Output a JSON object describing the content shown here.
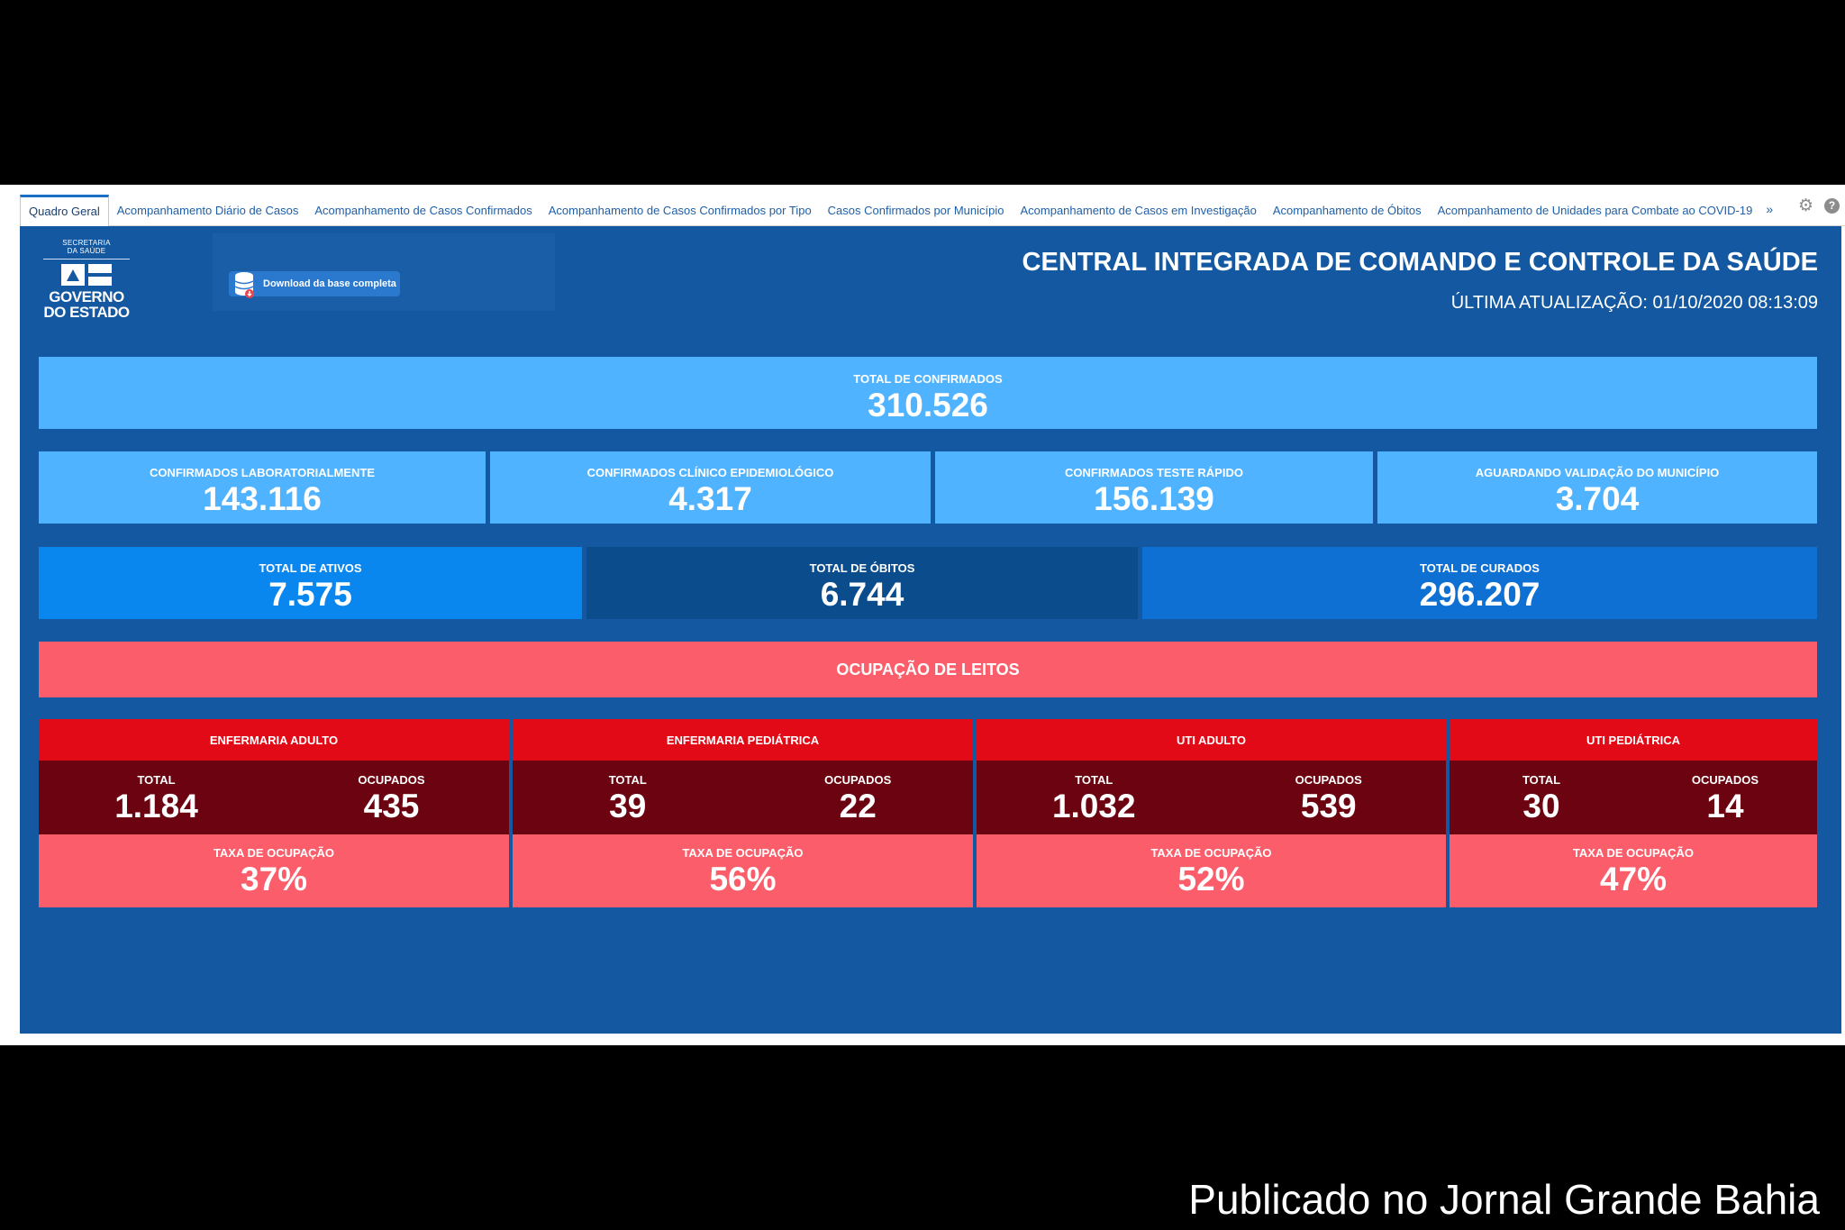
{
  "tabs": [
    {
      "label": "Quadro Geral",
      "active": true
    },
    {
      "label": "Acompanhamento Diário de Casos"
    },
    {
      "label": "Acompanhamento de Casos Confirmados"
    },
    {
      "label": "Acompanhamento de Casos Confirmados por Tipo"
    },
    {
      "label": "Casos Confirmados por Município"
    },
    {
      "label": "Acompanhamento de Casos em Investigação"
    },
    {
      "label": "Acompanhamento de Óbitos"
    },
    {
      "label": "Acompanhamento de Unidades para Combate ao COVID-19"
    }
  ],
  "tab_more": "»",
  "tools": {
    "settings": "⚙",
    "help": "?"
  },
  "logo": {
    "line1": "SECRETARIA",
    "line2": "DA SAÚDE",
    "big1": "GOVERNO",
    "big2": "DO ESTADO"
  },
  "download_label": "Download da base completa",
  "header": {
    "title": "CENTRAL INTEGRADA DE COMANDO E CONTROLE DA SAÚDE",
    "updated": "ÚLTIMA ATUALIZAÇÃO: 01/10/2020 08:13:09"
  },
  "total_confirmados": {
    "label": "TOTAL DE CONFIRMADOS",
    "value": "310.526"
  },
  "confirmados": [
    {
      "label": "CONFIRMADOS LABORATORIALMENTE",
      "value": "143.116"
    },
    {
      "label": "CONFIRMADOS CLÍNICO EPIDEMIOLÓGICO",
      "value": "4.317"
    },
    {
      "label": "CONFIRMADOS TESTE RÁPIDO",
      "value": "156.139"
    },
    {
      "label": "AGUARDANDO VALIDAÇÃO DO MUNICÍPIO",
      "value": "3.704"
    }
  ],
  "status": [
    {
      "label": "TOTAL DE ATIVOS",
      "value": "7.575"
    },
    {
      "label": "TOTAL DE ÓBITOS",
      "value": "6.744"
    },
    {
      "label": "TOTAL DE CURADOS",
      "value": "296.207"
    }
  ],
  "beds_title": "OCUPAÇÃO DE LEITOS",
  "beds": [
    {
      "name": "ENFERMARIA ADULTO",
      "total_label": "TOTAL",
      "total": "1.184",
      "occ_label": "OCUPADOS",
      "occ": "435",
      "rate_label": "TAXA DE OCUPAÇÃO",
      "rate": "37%"
    },
    {
      "name": "ENFERMARIA PEDIÁTRICA",
      "total_label": "TOTAL",
      "total": "39",
      "occ_label": "OCUPADOS",
      "occ": "22",
      "rate_label": "TAXA DE OCUPAÇÃO",
      "rate": "56%"
    },
    {
      "name": "UTI ADULTO",
      "total_label": "TOTAL",
      "total": "1.032",
      "occ_label": "OCUPADOS",
      "occ": "539",
      "rate_label": "TAXA DE OCUPAÇÃO",
      "rate": "52%"
    },
    {
      "name": "UTI PEDIÁTRICA",
      "total_label": "TOTAL",
      "total": "30",
      "occ_label": "OCUPADOS",
      "occ": "14",
      "rate_label": "TAXA DE OCUPAÇÃO",
      "rate": "47%"
    }
  ],
  "credit": "Publicado no Jornal Grande Bahia",
  "colors": {
    "dashboard_bg": "#1358a0",
    "light_card": "#4fb3ff",
    "active_card": "#0a87ef",
    "deaths_card": "#0b4d8c",
    "cured_card": "#0f70d4",
    "bed_header": "#e30a17",
    "bed_body": "#6b0410",
    "bed_rate": "#fb5e6a"
  }
}
